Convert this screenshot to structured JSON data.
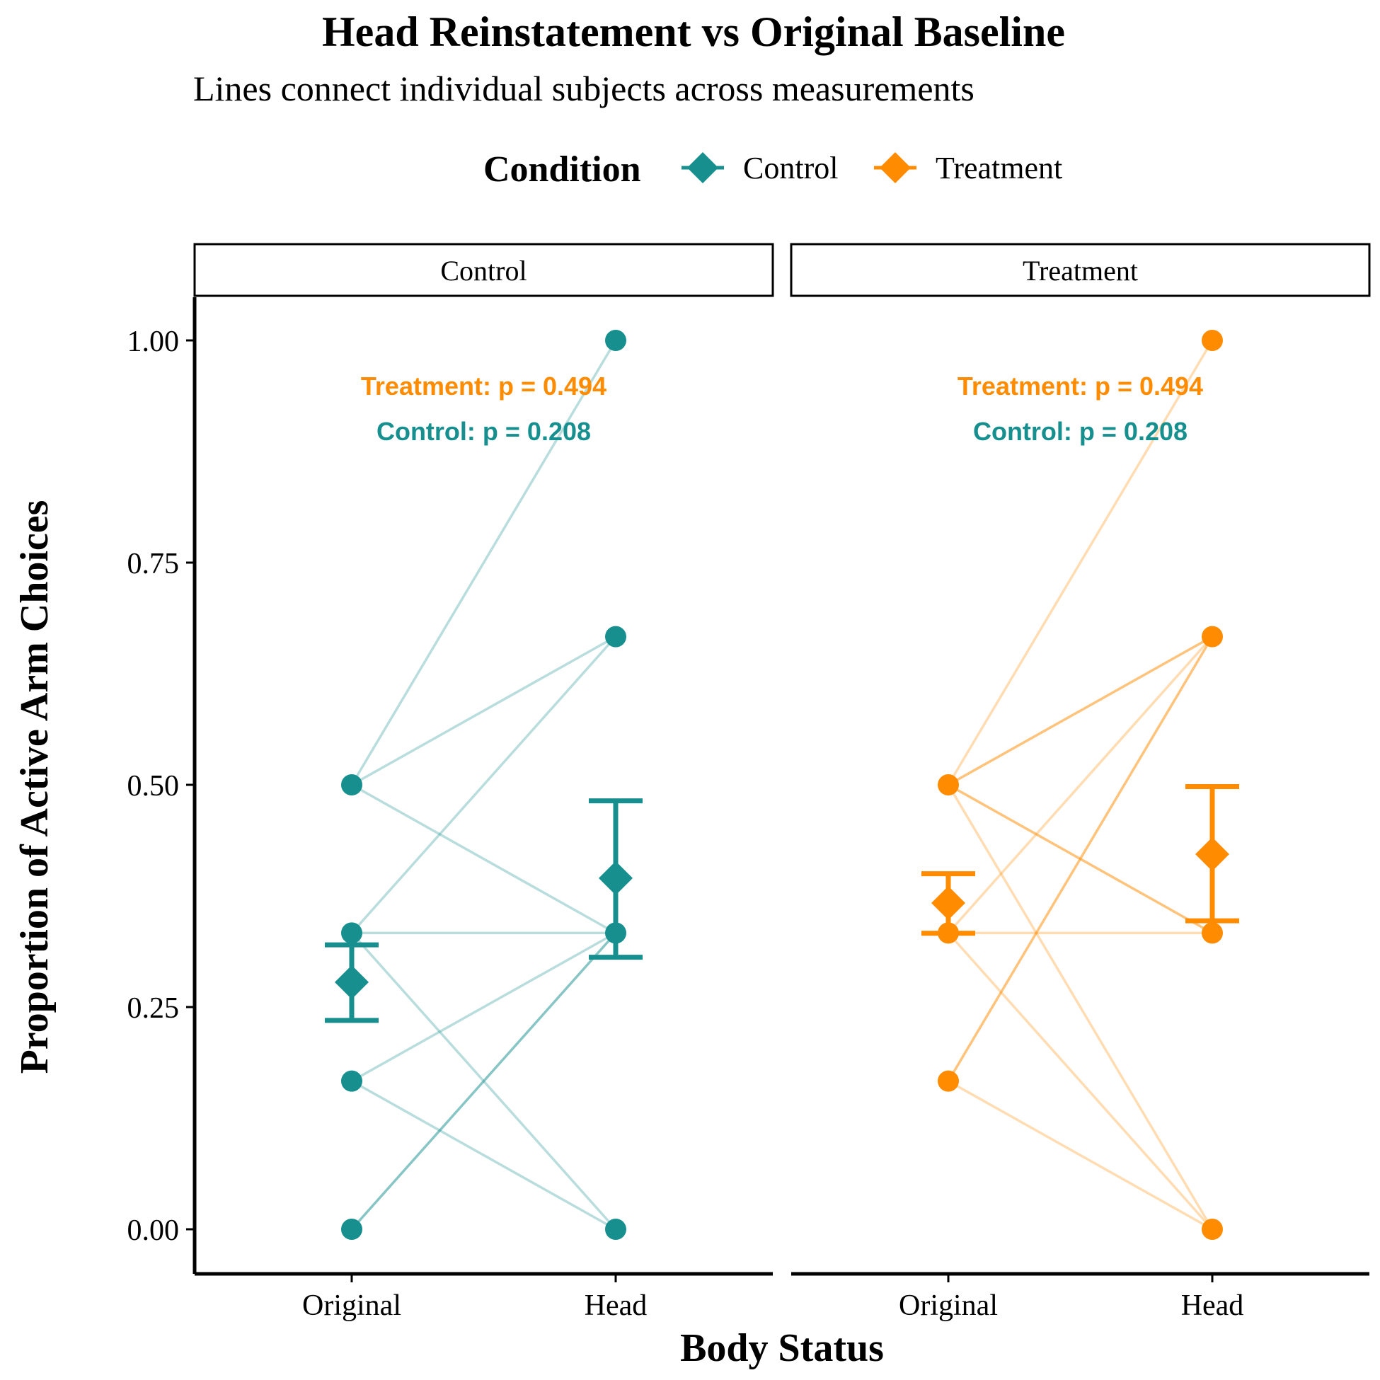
{
  "chart_data": {
    "type": "scatter",
    "title": "Head Reinstatement vs Original Baseline",
    "subtitle": "Lines connect individual subjects across measurements",
    "xlabel": "Body Status",
    "ylabel": "Proportion of Active Arm Choices",
    "categories": [
      "Original",
      "Head"
    ],
    "ylim": [
      -0.055,
      1.055
    ],
    "yticks": [
      "0.00",
      "0.25",
      "0.50",
      "0.75",
      "1.00"
    ],
    "grid": false,
    "legend": {
      "title": "Condition",
      "position": "top",
      "entries": [
        {
          "label": "Control",
          "color": "#178F8F"
        },
        {
          "label": "Treatment",
          "color": "#FF8C00"
        }
      ]
    },
    "annotations": {
      "treatment_p": "Treatment: p = 0.494",
      "control_p": "Control: p = 0.208"
    },
    "panels": [
      {
        "name": "Control",
        "color": "#178F8F",
        "subjects": [
          {
            "original": 0.5,
            "head": 1.0
          },
          {
            "original": 0.5,
            "head": 0.6667
          },
          {
            "original": 0.5,
            "head": 0.3333
          },
          {
            "original": 0.3333,
            "head": 0.6667
          },
          {
            "original": 0.3333,
            "head": 0.3333
          },
          {
            "original": 0.3333,
            "head": 0.0
          },
          {
            "original": 0.1667,
            "head": 0.3333
          },
          {
            "original": 0.1667,
            "head": 0.0
          },
          {
            "original": 0.0,
            "head": 0.3333
          },
          {
            "original": 0.0,
            "head": 0.3333
          }
        ],
        "summary": [
          {
            "category": "Original",
            "mean": 0.278,
            "lower": 0.235,
            "upper": 0.32
          },
          {
            "category": "Head",
            "mean": 0.395,
            "lower": 0.306,
            "upper": 0.482
          }
        ]
      },
      {
        "name": "Treatment",
        "color": "#FF8C00",
        "subjects": [
          {
            "original": 0.5,
            "head": 1.0
          },
          {
            "original": 0.5,
            "head": 0.6667
          },
          {
            "original": 0.5,
            "head": 0.6667
          },
          {
            "original": 0.5,
            "head": 0.3333
          },
          {
            "original": 0.5,
            "head": 0.3333
          },
          {
            "original": 0.5,
            "head": 0.0
          },
          {
            "original": 0.3333,
            "head": 0.6667
          },
          {
            "original": 0.3333,
            "head": 0.3333
          },
          {
            "original": 0.3333,
            "head": 0.0
          },
          {
            "original": 0.1667,
            "head": 0.6667
          },
          {
            "original": 0.1667,
            "head": 0.6667
          },
          {
            "original": 0.1667,
            "head": 0.0
          }
        ],
        "summary": [
          {
            "category": "Original",
            "mean": 0.367,
            "lower": 0.333,
            "upper": 0.4
          },
          {
            "category": "Head",
            "mean": 0.422,
            "lower": 0.347,
            "upper": 0.498
          }
        ]
      }
    ]
  }
}
